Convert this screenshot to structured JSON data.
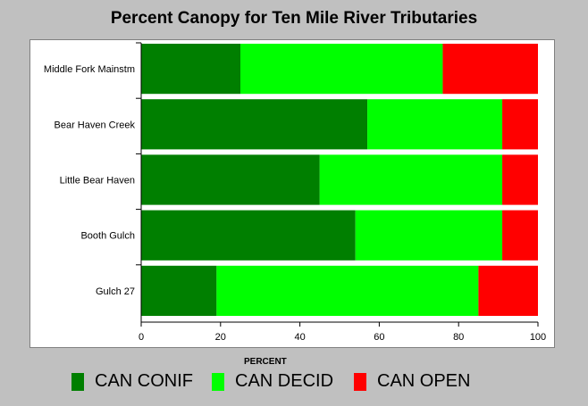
{
  "chart_data": {
    "type": "bar",
    "orientation": "horizontal",
    "stacked": true,
    "title": "Percent Canopy for Ten Mile River Tributaries",
    "xlabel": "PERCENT",
    "ylabel": "",
    "xlim": [
      0,
      100
    ],
    "xticks": [
      "0",
      "20",
      "40",
      "60",
      "80",
      "100"
    ],
    "categories": [
      "Middle Fork Mainstm",
      "Bear Haven Creek",
      "Little Bear Haven",
      "Booth Gulch",
      "Gulch 27"
    ],
    "series": [
      {
        "name": "CAN CONIF",
        "color": "#007f00",
        "values": [
          25,
          57,
          45,
          54,
          19
        ]
      },
      {
        "name": "CAN DECID",
        "color": "#00ff00",
        "values": [
          51,
          34,
          46,
          37,
          66
        ]
      },
      {
        "name": "CAN OPEN",
        "color": "#ff0000",
        "values": [
          24,
          9,
          9,
          9,
          15
        ]
      }
    ],
    "legend_position": "bottom",
    "grid": false
  }
}
